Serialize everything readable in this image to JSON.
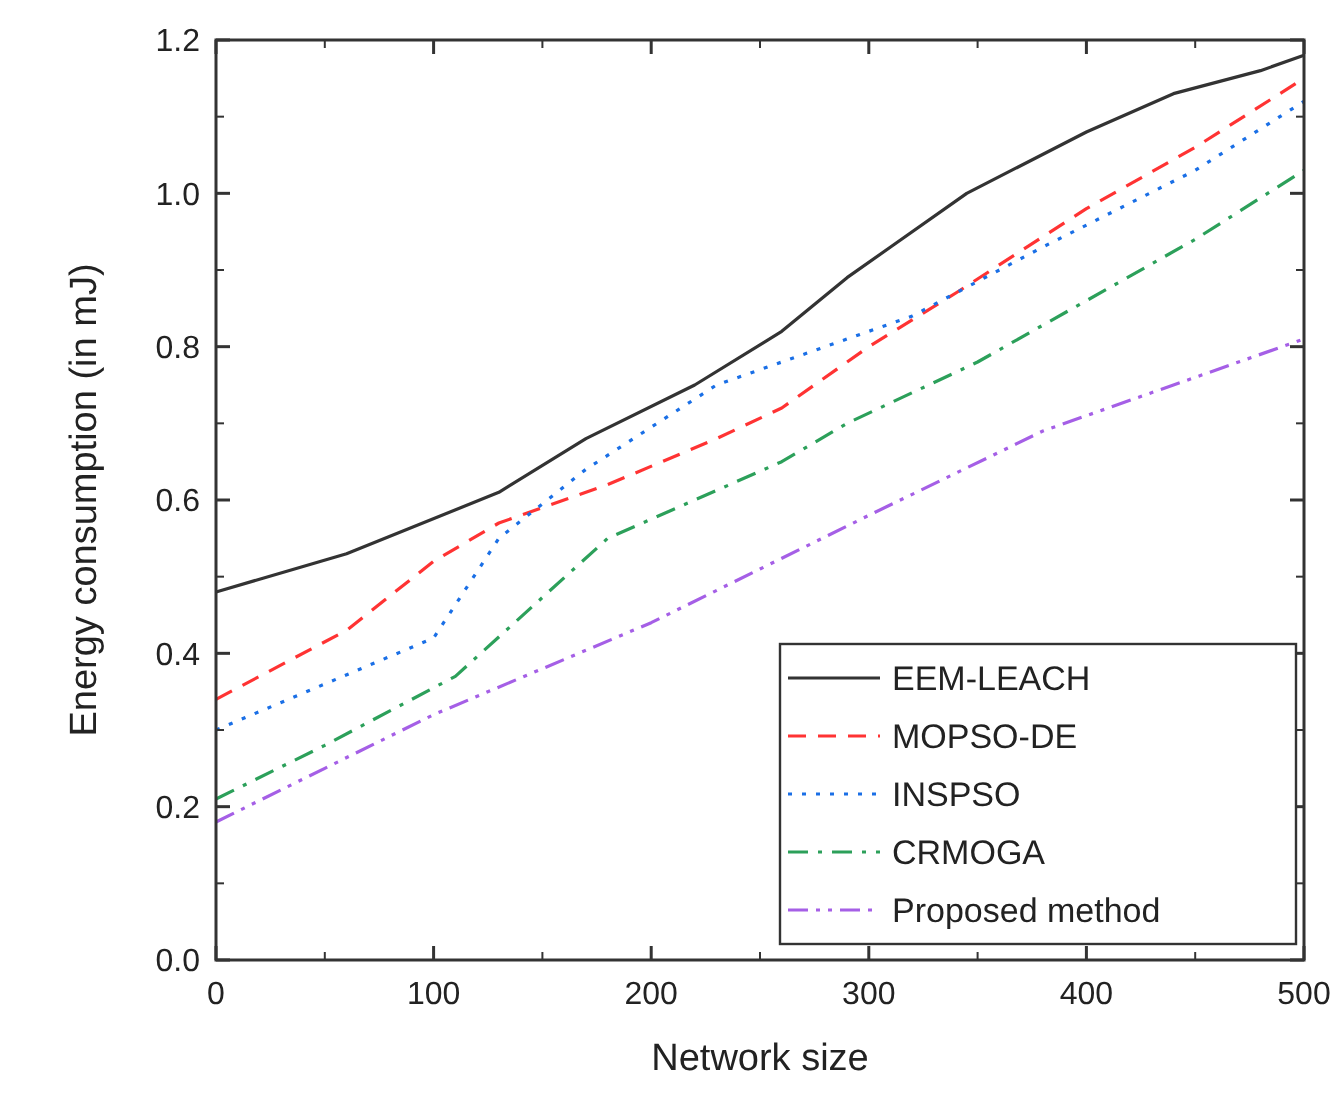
{
  "chart_data": {
    "type": "line",
    "xlabel": "Network size",
    "ylabel": "Energy consumption (in mJ)",
    "xlim": [
      0,
      500
    ],
    "ylim": [
      0,
      1.2
    ],
    "xticks": [
      0,
      100,
      200,
      300,
      400,
      500
    ],
    "yticks": [
      {
        "value": 0,
        "label": "0.0"
      },
      0.2,
      0.4,
      0.6,
      0.8,
      {
        "value": 1,
        "label": "1.0"
      },
      1.2
    ],
    "grid": false,
    "legend": "bottom right",
    "marker": "none",
    "series": [
      {
        "name": "EEM-LEACH",
        "color": "#333333",
        "line_style": "solid",
        "x": [
          0,
          60,
          130,
          170,
          220,
          260,
          290,
          310,
          345,
          400,
          440,
          480,
          500
        ],
        "values": [
          0.48,
          0.53,
          0.61,
          0.68,
          0.75,
          0.82,
          0.89,
          0.93,
          1.0,
          1.08,
          1.13,
          1.16,
          1.18
        ]
      },
      {
        "name": "MOPSO-DE",
        "color": "#ff3333",
        "line_style": "dashed",
        "x": [
          0,
          60,
          100,
          130,
          180,
          230,
          260,
          300,
          340,
          400,
          450,
          500
        ],
        "values": [
          0.34,
          0.43,
          0.52,
          0.57,
          0.62,
          0.68,
          0.72,
          0.8,
          0.87,
          0.98,
          1.06,
          1.15
        ]
      },
      {
        "name": "INSPSO",
        "color": "#1a6fe6",
        "line_style": "dotted",
        "x": [
          0,
          50,
          100,
          130,
          170,
          230,
          260,
          290,
          320,
          380,
          450,
          500
        ],
        "values": [
          0.3,
          0.36,
          0.42,
          0.55,
          0.64,
          0.75,
          0.78,
          0.81,
          0.84,
          0.93,
          1.03,
          1.12
        ]
      },
      {
        "name": "CRMOGA",
        "color": "#2ca05a",
        "line_style": "dashdot",
        "x": [
          0,
          50,
          110,
          180,
          260,
          290,
          350,
          400,
          450,
          500
        ],
        "values": [
          0.21,
          0.28,
          0.37,
          0.55,
          0.65,
          0.7,
          0.78,
          0.86,
          0.94,
          1.03
        ]
      },
      {
        "name": "Proposed method",
        "color": "#a55fe6",
        "line_style": "dashdotdot",
        "x": [
          0,
          50,
          100,
          150,
          200,
          250,
          300,
          380,
          440,
          500
        ],
        "values": [
          0.18,
          0.25,
          0.32,
          0.38,
          0.44,
          0.51,
          0.58,
          0.69,
          0.75,
          0.81
        ]
      }
    ]
  }
}
